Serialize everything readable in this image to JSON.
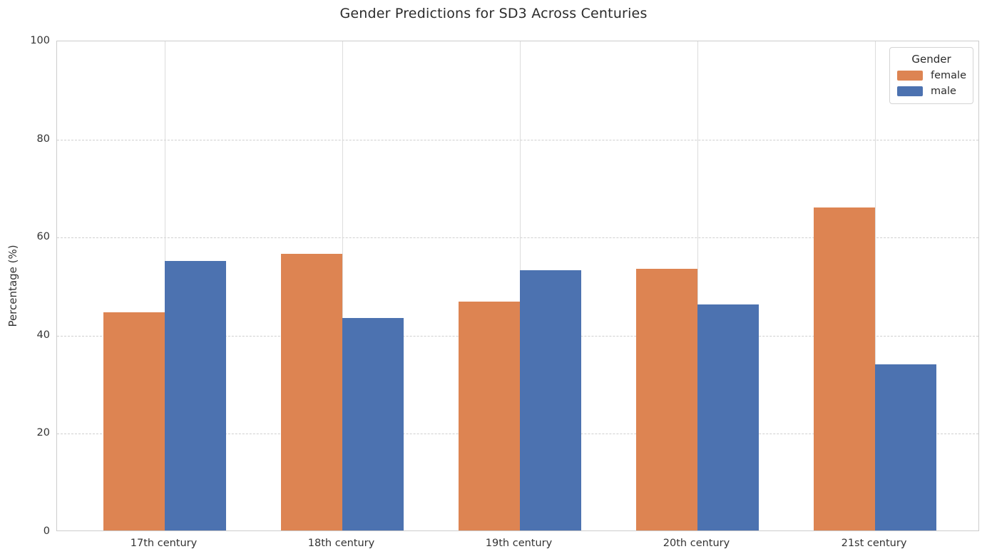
{
  "title": "Gender Predictions for SD3 Across Centuries",
  "chart_data": {
    "type": "bar",
    "title": "Gender Predictions for SD3 Across Centuries",
    "categories": [
      "17th century",
      "18th century",
      "19th century",
      "20th century",
      "21st century"
    ],
    "series": [
      {
        "name": "female",
        "color": "#DD8452",
        "values": [
          44.5,
          56.4,
          46.6,
          53.4,
          65.8
        ]
      },
      {
        "name": "male",
        "color": "#4C72B0",
        "values": [
          55.0,
          43.3,
          53.1,
          46.1,
          33.8
        ]
      }
    ],
    "xlabel": "",
    "ylabel": "Percentage (%)",
    "ylim": [
      0,
      100
    ],
    "yticks": [
      0,
      20,
      40,
      60,
      80,
      100
    ],
    "grid": {
      "horizontal": "dashed",
      "vertical": "solid-at-category-centers"
    },
    "legend": {
      "title": "Gender",
      "entries": [
        "female",
        "male"
      ],
      "position": "upper-right"
    }
  },
  "colors": {
    "female": "#DD8452",
    "male": "#4C72B0",
    "grid": "#cfcfcf",
    "spine": "#cccccc",
    "text": "#333333"
  }
}
